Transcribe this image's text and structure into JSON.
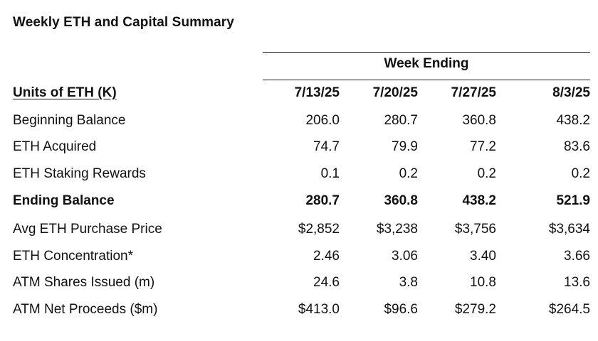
{
  "title": "Weekly ETH and Capital Summary",
  "group_header": "Week Ending",
  "units_label": "Units of ETH (K)",
  "columns": [
    "7/13/25",
    "7/20/25",
    "7/27/25",
    "8/3/25"
  ],
  "rows": [
    {
      "label": "Beginning Balance",
      "values": [
        "206.0",
        "280.7",
        "360.8",
        "438.2"
      ],
      "bold": false
    },
    {
      "label": "ETH Acquired",
      "values": [
        "74.7",
        "79.9",
        "77.2",
        "83.6"
      ],
      "bold": false
    },
    {
      "label": "ETH Staking Rewards",
      "values": [
        "0.1",
        "0.2",
        "0.2",
        "0.2"
      ],
      "bold": false
    },
    {
      "label": "Ending Balance",
      "values": [
        "280.7",
        "360.8",
        "438.2",
        "521.9"
      ],
      "bold": true
    },
    {
      "label": "Avg ETH Purchase Price",
      "values": [
        "$2,852",
        "$3,238",
        "$3,756",
        "$3,634"
      ],
      "bold": false
    },
    {
      "label": "ETH Concentration*",
      "values": [
        "2.46",
        "3.06",
        "3.40",
        "3.66"
      ],
      "bold": false
    },
    {
      "label": "ATM Shares Issued (m)",
      "values": [
        "24.6",
        "3.8",
        "10.8",
        "13.6"
      ],
      "bold": false
    },
    {
      "label": "ATM Net Proceeds ($m)",
      "values": [
        "$413.0",
        "$96.6",
        "$279.2",
        "$264.5"
      ],
      "bold": false
    }
  ]
}
